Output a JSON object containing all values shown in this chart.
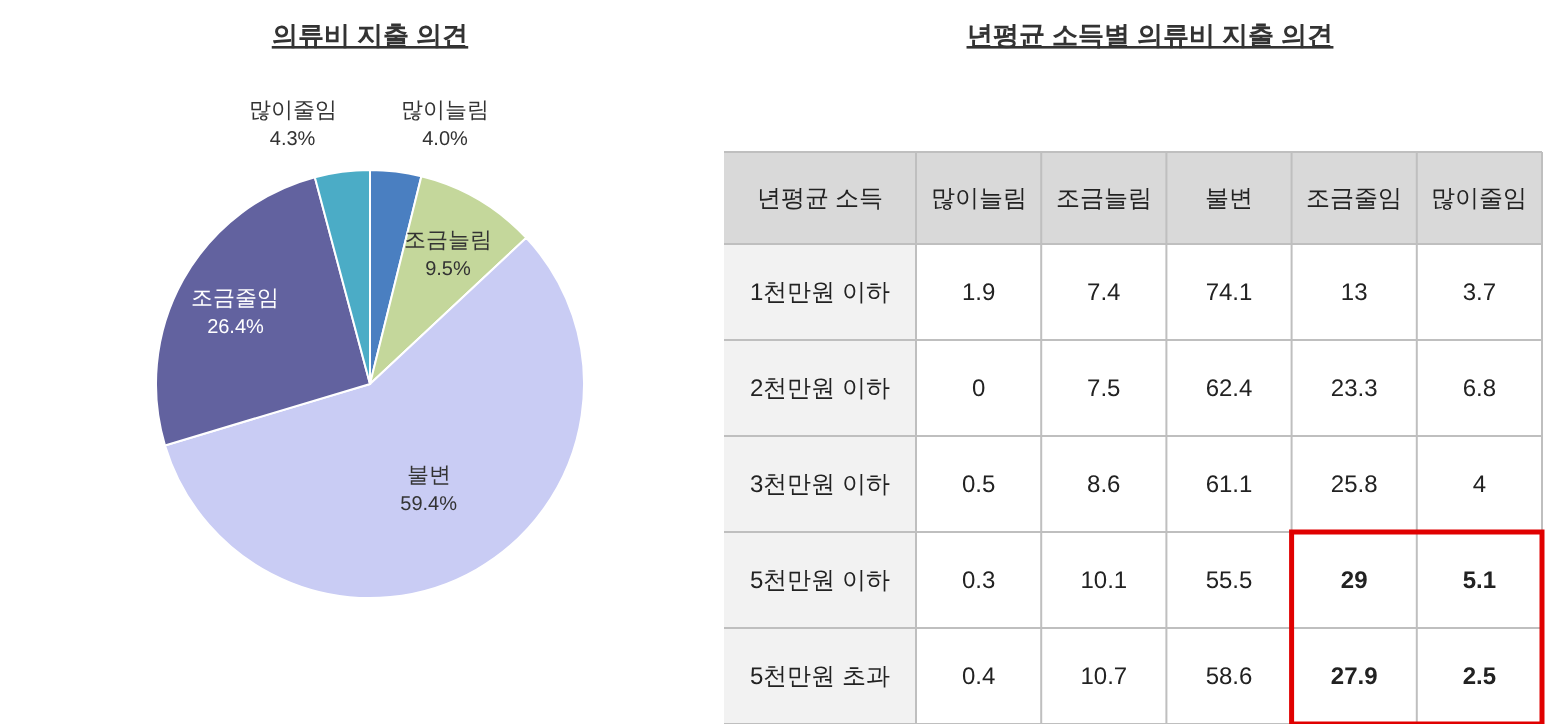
{
  "chart_data": [
    {
      "type": "pie",
      "title": "의류비 지출 의견",
      "categories": [
        "많이늘림",
        "조금늘림",
        "불변",
        "조금줄임",
        "많이줄임"
      ],
      "values": [
        4.0,
        9.5,
        59.4,
        26.4,
        4.3
      ],
      "colors": [
        "#4a7fc1",
        "#c4d79b",
        "#c9ccf4",
        "#62629f",
        "#4bacc6"
      ],
      "value_labels": [
        "4.0%",
        "9.5%",
        "59.4%",
        "26.4%",
        "4.3%"
      ],
      "legend": false
    },
    {
      "type": "heatmap",
      "title": "년평균 소득별 의류비 지출 의견",
      "ylabel": "년평균 소득",
      "categories": [
        "많이늘림",
        "조금늘림",
        "불변",
        "조금줄임",
        "많이줄임"
      ],
      "y_categories": [
        "1천만원 이하",
        "2천만원 이하",
        "3천만원 이하",
        "5천만원 이하",
        "5천만원 초과"
      ],
      "cells": [
        [
          1.9,
          7.4,
          74.1,
          13,
          3.7
        ],
        [
          0,
          7.5,
          62.4,
          23.3,
          6.8
        ],
        [
          0.5,
          8.6,
          61.1,
          25.8,
          4
        ],
        [
          0.3,
          10.1,
          55.5,
          29,
          5.1
        ],
        [
          0.4,
          10.7,
          58.6,
          27.9,
          2.5
        ]
      ],
      "data_labels": true
    }
  ]
}
